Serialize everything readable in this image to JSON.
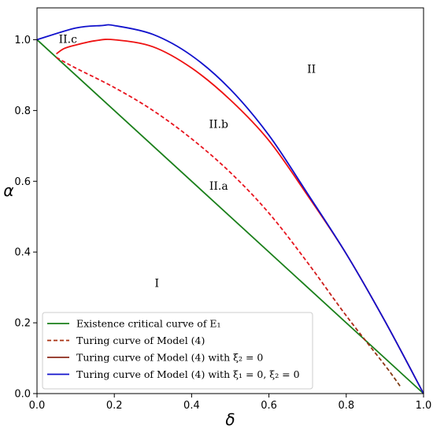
{
  "chart_data": {
    "type": "line",
    "title": "",
    "xlabel": "δ",
    "ylabel": "α",
    "xlim": [
      0.0,
      1.0
    ],
    "ylim": [
      0.0,
      1.09
    ],
    "x_ticks": [
      "0.0",
      "0.2",
      "0.4",
      "0.6",
      "0.8",
      "1.0"
    ],
    "y_ticks": [
      "0.0",
      "0.2",
      "0.4",
      "0.6",
      "0.8",
      "1.0"
    ],
    "grid": false,
    "legend_position": "bottom-left",
    "series": [
      {
        "name": "Existence critical curve of E₁",
        "color": "#1a7f1a",
        "style": "solid",
        "x": [
          0.0,
          1.0
        ],
        "y": [
          1.0,
          0.0
        ]
      },
      {
        "name": "Turing curve of Model (4)",
        "color": "#e8141e",
        "end_color": "#7a3b10",
        "style": "dashed",
        "x": [
          0.05,
          0.1,
          0.2,
          0.3,
          0.4,
          0.5,
          0.6,
          0.7,
          0.8,
          0.9,
          0.94
        ],
        "y": [
          0.95,
          0.92,
          0.865,
          0.8,
          0.72,
          0.625,
          0.51,
          0.37,
          0.22,
          0.08,
          0.02
        ]
      },
      {
        "name": "Turing curve of Model (4) with ξ₂ = 0",
        "color": "#ee1111",
        "style": "solid",
        "x": [
          0.05,
          0.07,
          0.1,
          0.15,
          0.2,
          0.3,
          0.4,
          0.5,
          0.6,
          0.7,
          0.8,
          0.9,
          1.0
        ],
        "y": [
          0.96,
          0.975,
          0.985,
          0.997,
          1.0,
          0.98,
          0.92,
          0.83,
          0.715,
          0.56,
          0.395,
          0.205,
          0.0
        ]
      },
      {
        "name": "Turing curve of Model (4) with ξ₁ = 0, ξ₂ = 0",
        "color": "#1111cc",
        "style": "solid",
        "x": [
          0.0,
          0.1,
          0.167,
          0.2,
          0.3,
          0.4,
          0.5,
          0.6,
          0.7,
          0.8,
          0.9,
          1.0
        ],
        "y": [
          1.0,
          1.033,
          1.04,
          1.04,
          1.015,
          0.955,
          0.86,
          0.73,
          0.565,
          0.395,
          0.205,
          0.0
        ]
      }
    ],
    "annotations": [
      {
        "text": "II.c",
        "x": 0.08,
        "y": 1.0
      },
      {
        "text": "II",
        "x": 0.71,
        "y": 0.915
      },
      {
        "text": "II.b",
        "x": 0.47,
        "y": 0.76
      },
      {
        "text": "II.a",
        "x": 0.47,
        "y": 0.585
      },
      {
        "text": "I",
        "x": 0.31,
        "y": 0.31
      }
    ]
  }
}
